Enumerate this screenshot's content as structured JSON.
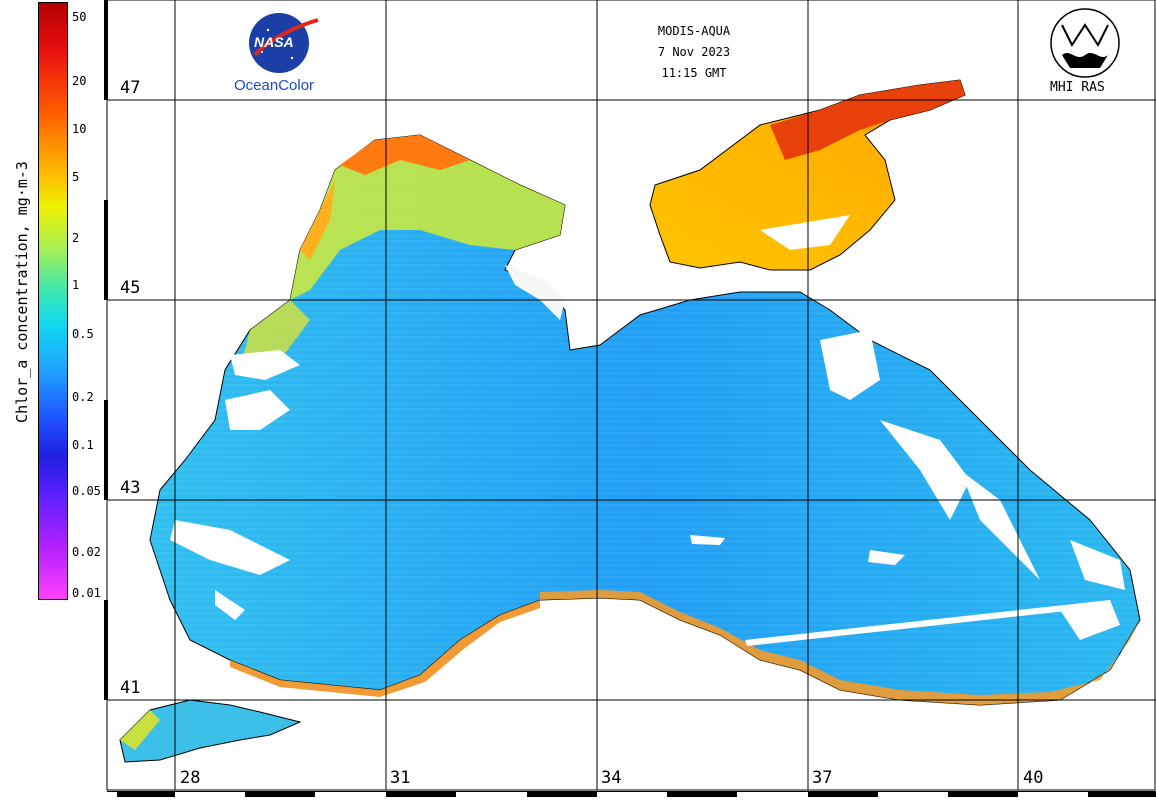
{
  "header": {
    "sensor": "MODIS-AQUA",
    "date": "7 Nov 2023",
    "time": "11:15 GMT"
  },
  "logos": {
    "nasa_text": "NASA",
    "oceancolor": "OceanColor",
    "mhi": "MHI RAS"
  },
  "colorbar": {
    "title": "Chlor_a concentration, mg·m-3",
    "ticks": [
      "50",
      "20",
      "10",
      "5",
      "2",
      "1",
      "0.5",
      "0.2",
      "0.1",
      "0.05",
      "0.02",
      "0.01"
    ]
  },
  "grid": {
    "latitudes": [
      "47",
      "45",
      "43",
      "41"
    ],
    "longitudes": [
      "28",
      "31",
      "34",
      "37",
      "40"
    ]
  }
}
